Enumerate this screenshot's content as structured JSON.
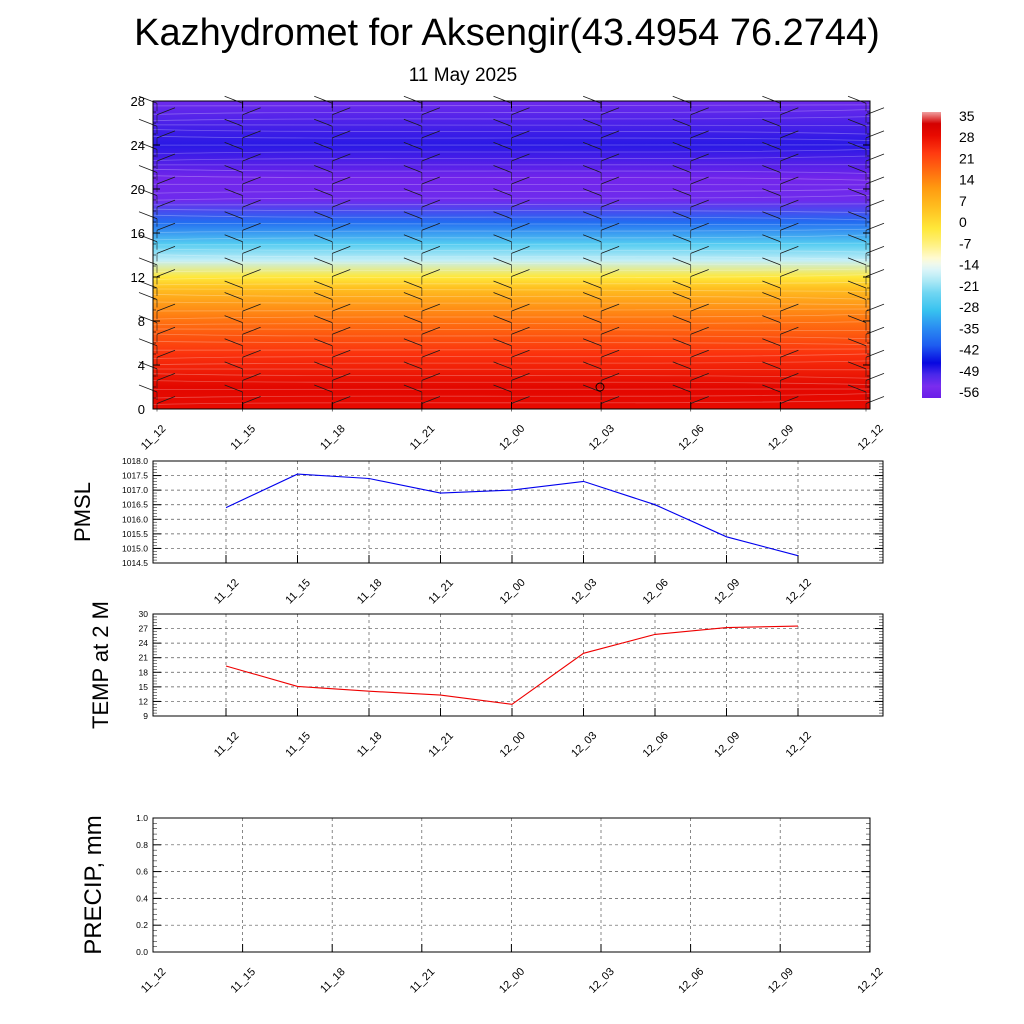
{
  "header": {
    "title": "Kazhydromet for Aksengir(43.4954 76.2744)",
    "subtitle": "11 May 2025"
  },
  "chart_data": [
    {
      "type": "heatmap",
      "description_free": true,
      "x_tick_labels": [
        "11_12",
        "11_15",
        "11_18",
        "11_21",
        "12_00",
        "12_03",
        "12_06",
        "12_09",
        "12_12"
      ],
      "yticks": [
        "0",
        "4",
        "8",
        "12",
        "16",
        "20",
        "24",
        "28"
      ],
      "ylim": [
        0,
        28
      ],
      "colorbar_labels": [
        "35",
        "28",
        "21",
        "14",
        "7",
        "0",
        "-7",
        "-14",
        "-21",
        "-28",
        "-35",
        "-42",
        "-49",
        "-56"
      ],
      "colorbar_range": [
        -60,
        38
      ],
      "colors": {
        "warm_low": "#d40000",
        "hot": "#ff3a10",
        "orange": "#ff9a10",
        "yellow": "#ffe83a",
        "pale": "#fffad0",
        "light_blue": "#b8ecf6",
        "sky": "#38c2ef",
        "blue": "#1e5cf0",
        "deep_blue": "#0808e0",
        "violet": "#7a2cee"
      },
      "temperature_profile": [
        {
          "level": 0,
          "value": 30
        },
        {
          "level": 2,
          "value": 31
        },
        {
          "level": 5,
          "value": 25
        },
        {
          "level": 8,
          "value": 17
        },
        {
          "level": 11,
          "value": 5
        },
        {
          "level": 12,
          "value": -2
        },
        {
          "level": 13.5,
          "value": -18
        },
        {
          "level": 15,
          "value": -27
        },
        {
          "level": 17,
          "value": -40
        },
        {
          "level": 19,
          "value": -55
        },
        {
          "level": 21,
          "value": -58
        },
        {
          "level": 24,
          "value": -50
        },
        {
          "level": 28,
          "value": -55
        }
      ]
    },
    {
      "type": "line",
      "ylabel": "PMSL",
      "categories": [
        "11_12",
        "11_15",
        "11_18",
        "11_21",
        "12_00",
        "12_03",
        "12_06",
        "12_09",
        "12_12"
      ],
      "y_tick_labels": [
        "1018.0",
        "1017.5",
        "1017.0",
        "1016.5",
        "1016.0",
        "1015.5",
        "1015.0",
        "1014.5"
      ],
      "ylim": [
        1014.5,
        1018.0
      ],
      "series": [
        {
          "values": [
            1016.4,
            1017.55,
            1017.4,
            1016.9,
            1017.0,
            1017.3,
            1016.5,
            1015.4,
            1014.75
          ],
          "color": "#0000ee"
        }
      ],
      "grid": true
    },
    {
      "type": "line",
      "ylabel": "TEMP at 2 M",
      "categories": [
        "11_12",
        "11_15",
        "11_18",
        "11_21",
        "12_00",
        "12_03",
        "12_06",
        "12_09",
        "12_12"
      ],
      "y_tick_labels": [
        "30",
        "27",
        "24",
        "21",
        "18",
        "15",
        "12",
        "9"
      ],
      "ylim": [
        9,
        30
      ],
      "series": [
        {
          "values": [
            19.3,
            15.1,
            14.1,
            13.3,
            11.4,
            21.9,
            25.8,
            27.2,
            27.5
          ],
          "color": "#ee0000"
        }
      ],
      "grid": true
    },
    {
      "type": "line",
      "ylabel": "PRECIP, mm",
      "categories": [
        "11_12",
        "11_15",
        "11_18",
        "11_21",
        "12_00",
        "12_03",
        "12_06",
        "12_09",
        "12_12"
      ],
      "y_tick_labels": [
        "1.0",
        "0.8",
        "0.6",
        "0.4",
        "0.2",
        "0.0"
      ],
      "ylim": [
        0,
        1.0
      ],
      "series": [
        {
          "values": [
            0,
            0,
            0,
            0,
            0,
            0,
            0,
            0,
            0
          ],
          "color": "#007700"
        }
      ],
      "grid": true
    }
  ]
}
